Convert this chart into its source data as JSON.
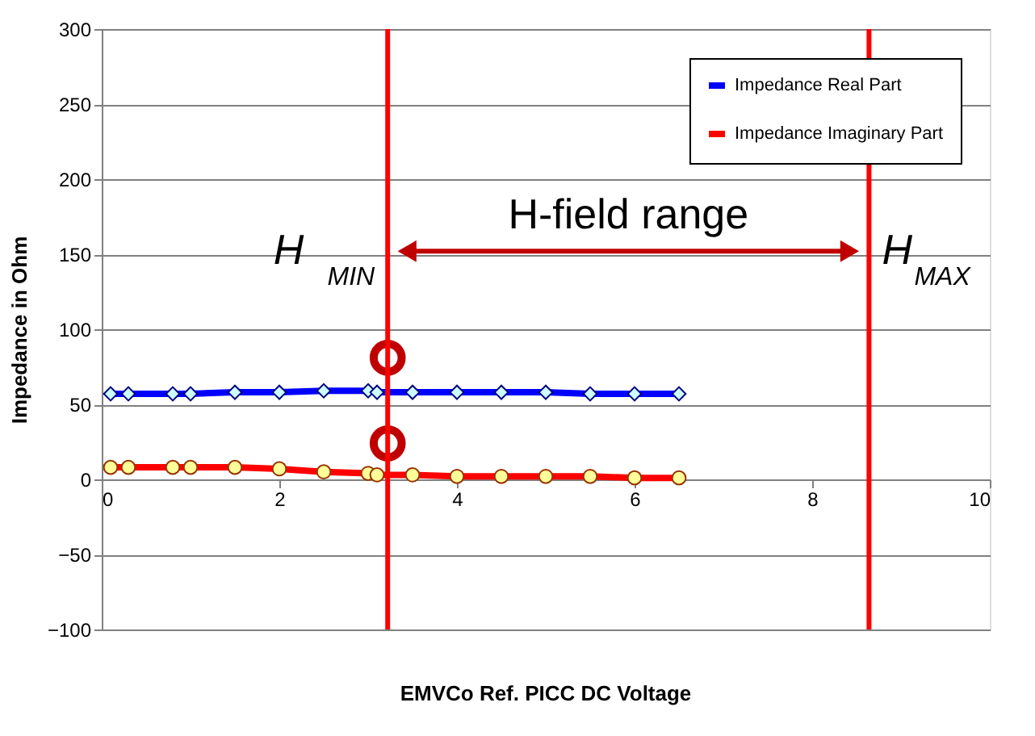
{
  "chart_data": {
    "type": "line",
    "xlabel": "EMVCo Ref. PICC DC Voltage",
    "ylabel": "Impedance in Ohm",
    "x": [
      0.1,
      0.3,
      0.8,
      1.0,
      1.5,
      2.0,
      2.5,
      3.0,
      3.1,
      3.5,
      4.0,
      4.5,
      5.0,
      5.5,
      6.0,
      6.5
    ],
    "series": [
      {
        "name": "Impedance Real Part",
        "color": "#0000ff",
        "marker": "diamond",
        "values": [
          57,
          57,
          57,
          57,
          58,
          58,
          59,
          59,
          58,
          58,
          58,
          58,
          58,
          57,
          57,
          57
        ]
      },
      {
        "name": "Impedance Imaginary Part",
        "color": "#ff0000",
        "marker": "circle",
        "values": [
          8,
          8,
          8,
          8,
          8,
          7,
          5,
          4,
          3,
          3,
          2,
          2,
          2,
          2,
          1,
          1
        ]
      },
      {
        "type": "scatter",
        "color": "#c00000",
        "marker": "circle",
        "x": [
          3.22,
          3.22
        ],
        "values": [
          81,
          24
        ]
      }
    ],
    "xlim": [
      0,
      10
    ],
    "xticks": [
      0,
      2,
      4,
      6,
      8,
      10
    ],
    "ylim": [
      -100,
      300
    ],
    "yticks": [
      -100,
      -50,
      0,
      50,
      100,
      150,
      200,
      250,
      300
    ],
    "grid": "y",
    "legend": "top right",
    "ref_lines": [
      {
        "axis": "x",
        "value": 3.22,
        "label": "H$_{MIN}$",
        "color": "#ff0000"
      },
      {
        "axis": "x",
        "value": 8.64,
        "label": "H$_{MAX}$",
        "color": "#ff0000"
      }
    ],
    "annotations": [
      "H-field range"
    ]
  }
}
